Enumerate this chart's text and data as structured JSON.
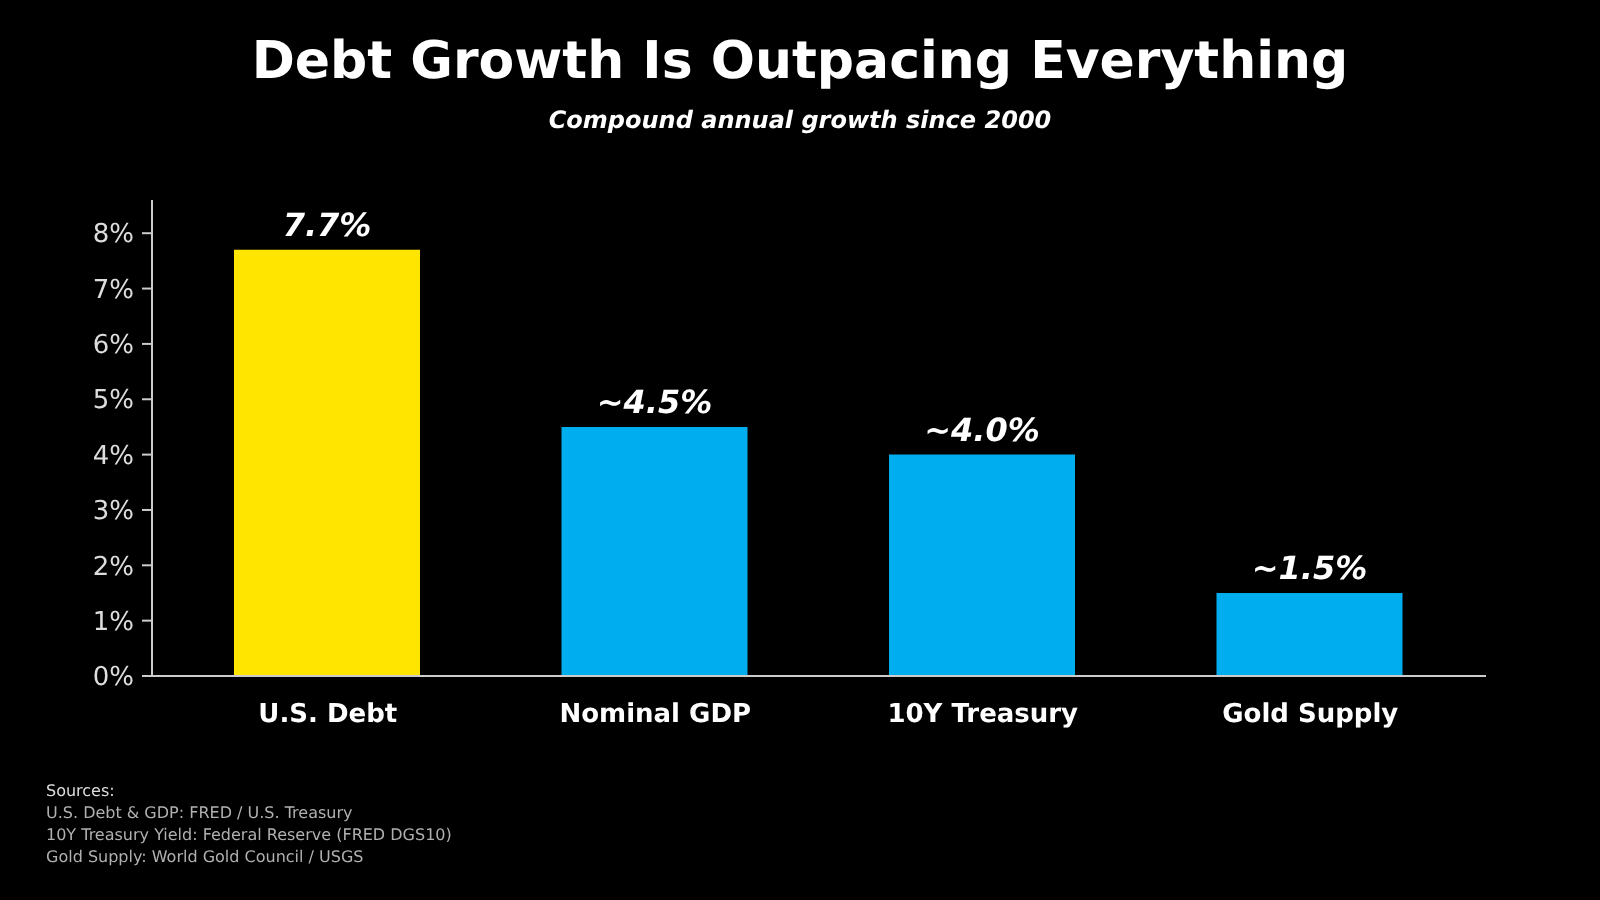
{
  "chart_data": {
    "type": "bar",
    "title": "Debt Growth Is Outpacing Everything",
    "subtitle": "Compound annual growth since 2000",
    "categories": [
      "U.S. Debt",
      "Nominal GDP",
      "10Y Treasury",
      "Gold Supply"
    ],
    "values": [
      7.7,
      4.5,
      4.0,
      1.5
    ],
    "colors": [
      "#ffe500",
      "#00aeef",
      "#00aeef",
      "#00aeef"
    ],
    "value_labels": [
      "7.7%",
      "~4.5%",
      "~4.0%",
      "~1.5%"
    ],
    "ylim": [
      0,
      8.6
    ],
    "yticks": [
      {
        "value": 0,
        "label": "0%"
      },
      {
        "value": 1,
        "label": "1%"
      },
      {
        "value": 2,
        "label": "2%"
      },
      {
        "value": 3,
        "label": "3%"
      },
      {
        "value": 4,
        "label": "4%"
      },
      {
        "value": 5,
        "label": "5%"
      },
      {
        "value": 6,
        "label": "6%"
      },
      {
        "value": 7,
        "label": "7%"
      },
      {
        "value": 8,
        "label": "8%"
      }
    ],
    "annotations": [
      "Sources:",
      "U.S. Debt & GDP: FRED / U.S. Treasury",
      "10Y Treasury Yield: Federal Reserve (FRED DGS10)",
      "Gold Supply: World Gold Council / USGS"
    ]
  }
}
